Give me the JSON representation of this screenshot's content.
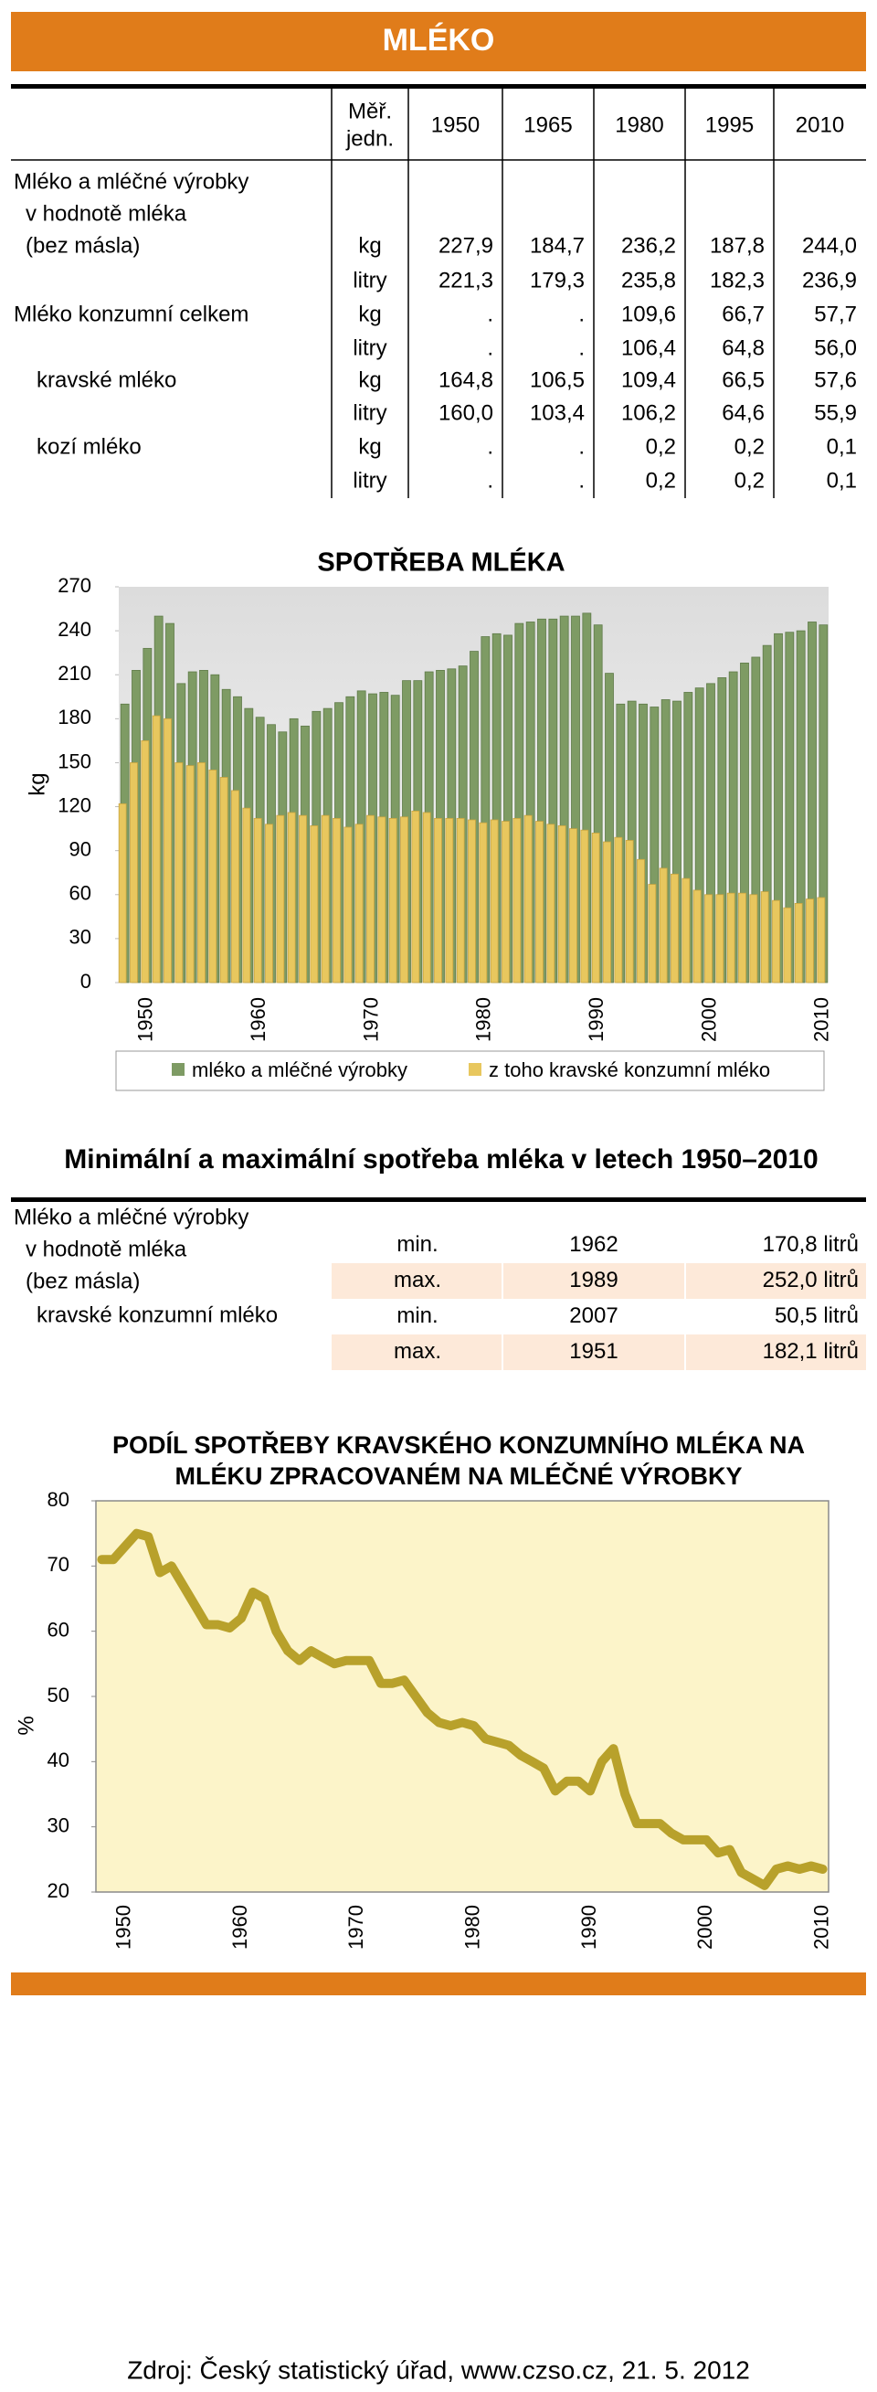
{
  "header": {
    "title": "MLÉKO"
  },
  "table": {
    "unit_header": [
      "Měř.",
      "jedn."
    ],
    "years": [
      "1950",
      "1965",
      "1980",
      "1995",
      "2010"
    ],
    "rows": [
      {
        "label": "Mléko a mléčné výrobky"
      },
      {
        "label": "v hodnotě mléka"
      },
      {
        "label": "(bez másla)",
        "unit": "kg",
        "values": [
          "227,9",
          "184,7",
          "236,2",
          "187,8",
          "244,0"
        ]
      },
      {
        "unit": "litry",
        "values": [
          "221,3",
          "179,3",
          "235,8",
          "182,3",
          "236,9"
        ]
      },
      {
        "label": "Mléko konzumní celkem",
        "unit": "kg",
        "values": [
          ".",
          ".",
          "109,6",
          "66,7",
          "57,7"
        ]
      },
      {
        "unit": "litry",
        "values": [
          ".",
          ".",
          "106,4",
          "64,8",
          "56,0"
        ]
      },
      {
        "label": "kravské mléko",
        "unit": "kg",
        "values": [
          "164,8",
          "106,5",
          "109,4",
          "66,5",
          "57,6"
        ]
      },
      {
        "unit": "litry",
        "values": [
          "160,0",
          "103,4",
          "106,2",
          "64,6",
          "55,9"
        ]
      },
      {
        "label": "kozí mléko",
        "unit": "kg",
        "values": [
          ".",
          ".",
          "0,2",
          "0,2",
          "0,1"
        ]
      },
      {
        "unit": "litry",
        "values": [
          ".",
          ".",
          "0,2",
          "0,2",
          "0,1"
        ]
      }
    ]
  },
  "chart_data": [
    {
      "type": "bar",
      "title": "SPOTŘEBA MLÉKA",
      "y_label": "kg",
      "categories": [
        null,
        null,
        "1950",
        null,
        null,
        null,
        null,
        null,
        null,
        null,
        null,
        null,
        "1960",
        null,
        null,
        null,
        null,
        null,
        null,
        null,
        null,
        null,
        "1970",
        null,
        null,
        null,
        null,
        null,
        null,
        null,
        null,
        null,
        "1980",
        null,
        null,
        null,
        null,
        null,
        null,
        null,
        null,
        null,
        "1990",
        null,
        null,
        null,
        null,
        null,
        null,
        null,
        null,
        null,
        "2000",
        null,
        null,
        null,
        null,
        null,
        null,
        null,
        null,
        null,
        "2010"
      ],
      "series": [
        {
          "name": "mléko a mléčné výrobky",
          "color": "#7e9b64",
          "values": [
            190,
            213,
            228,
            250,
            245,
            204,
            212,
            213,
            210,
            200,
            195,
            187,
            181,
            176,
            171,
            180,
            175,
            185,
            187,
            191,
            195,
            199,
            197,
            198,
            196,
            206,
            206,
            212,
            213,
            214,
            216,
            226,
            236,
            238,
            237,
            245,
            246,
            248,
            248,
            250,
            250,
            252,
            244,
            211,
            190,
            192,
            190,
            188,
            193,
            192,
            198,
            201,
            204,
            208,
            212,
            218,
            222,
            230,
            238,
            239,
            240,
            246,
            244
          ]
        },
        {
          "name": "z toho kravské konzumní mléko",
          "color": "#e8c75e",
          "values": [
            122,
            150,
            165,
            182,
            180,
            150,
            148,
            150,
            145,
            140,
            131,
            119,
            112,
            108,
            114,
            116,
            114,
            107,
            114,
            112,
            106,
            108,
            114,
            113,
            112,
            113,
            117,
            116,
            112,
            112,
            112,
            111,
            109,
            111,
            110,
            112,
            114,
            110,
            108,
            107,
            105,
            104,
            102,
            96,
            99,
            97,
            84,
            67,
            78,
            74,
            71,
            63,
            60,
            60,
            61,
            61,
            60,
            62,
            56,
            51,
            54,
            57,
            58
          ]
        }
      ],
      "ylim": [
        0,
        270
      ],
      "yticks": [
        0,
        30,
        60,
        90,
        120,
        150,
        180,
        210,
        240,
        270
      ]
    },
    {
      "type": "line",
      "title": [
        "PODÍL SPOTŘEBY KRAVSKÉHO KONZUMNÍHO MLÉKA NA",
        "MLÉKU ZPRACOVANÉM NA MLÉČNÉ VÝROBKY"
      ],
      "y_label": "%",
      "categories": [
        null,
        null,
        "1950",
        null,
        null,
        null,
        null,
        null,
        null,
        null,
        null,
        null,
        "1960",
        null,
        null,
        null,
        null,
        null,
        null,
        null,
        null,
        null,
        "1970",
        null,
        null,
        null,
        null,
        null,
        null,
        null,
        null,
        null,
        "1980",
        null,
        null,
        null,
        null,
        null,
        null,
        null,
        null,
        null,
        "1990",
        null,
        null,
        null,
        null,
        null,
        null,
        null,
        null,
        null,
        "2000",
        null,
        null,
        null,
        null,
        null,
        null,
        null,
        null,
        null,
        "2010"
      ],
      "color": "#b8a12b",
      "values": [
        71,
        71,
        73,
        75,
        74.5,
        69,
        70,
        67,
        64,
        61,
        61,
        60.5,
        62,
        66,
        65,
        60,
        57,
        55.5,
        57,
        56,
        55,
        55.5,
        55.5,
        55.5,
        52,
        52,
        52.5,
        50,
        47.5,
        46,
        45.5,
        46,
        45.5,
        43.5,
        43,
        42.5,
        41,
        40,
        39,
        35.5,
        37,
        37,
        35.5,
        40,
        42,
        35,
        30.5,
        30.5,
        30.5,
        29,
        28,
        28,
        28,
        26,
        26.5,
        23,
        22,
        21,
        23.5,
        24,
        23.5,
        24,
        23.5
      ],
      "ylim": [
        20,
        80
      ],
      "yticks": [
        20,
        30,
        40,
        50,
        60,
        70,
        80
      ]
    }
  ],
  "minmax": {
    "title": "Minimální a maximální spotřeba mléka v letech 1950–2010",
    "labels": [
      "Mléko a mléčné výrobky",
      "v hodnotě mléka",
      "(bez másla)",
      "kravské konzumní mléko"
    ],
    "rows": [
      [
        "min.",
        "1962",
        "170,8 litrů"
      ],
      [
        "max.",
        "1989",
        "252,0 litrů"
      ],
      [
        "min.",
        "2007",
        "50,5 litrů"
      ],
      [
        "max.",
        "1951",
        "182,1 litrů"
      ]
    ]
  },
  "source": "Zdroj: Český statistický úřad, www.czso.cz, 21. 5. 2012"
}
